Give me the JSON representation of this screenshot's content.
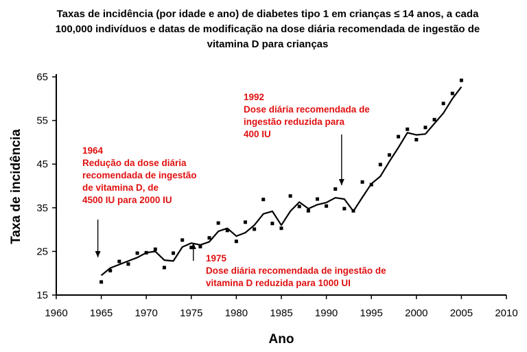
{
  "chart_data": {
    "type": "line",
    "title": "Taxas de incidência (por idade e ano) de diabetes tipo 1 em crianças ≤ 14 anos, a cada 100,000 indivíduos e datas de modificação na dose diária recomendada de ingestão de vitamina D para crianças",
    "xlabel": "Ano",
    "ylabel": "Taxa de incidência",
    "xlim": [
      1960,
      2010
    ],
    "ylim": [
      15,
      65
    ],
    "x_ticks": [
      1960,
      1965,
      1970,
      1975,
      1980,
      1985,
      1990,
      1995,
      2000,
      2005,
      2010
    ],
    "y_ticks": [
      15,
      25,
      35,
      45,
      55,
      65
    ],
    "grid": false,
    "series": [
      {
        "style": "points",
        "x": [
          1965,
          1966,
          1967,
          1968,
          1969,
          1970,
          1971,
          1972,
          1973,
          1974,
          1975,
          1976,
          1977,
          1978,
          1979,
          1980,
          1981,
          1982,
          1983,
          1984,
          1985,
          1986,
          1987,
          1988,
          1989,
          1990,
          1991,
          1992,
          1993,
          1994,
          1995,
          1996,
          1997,
          1998,
          1999,
          2000,
          2001,
          2002,
          2003,
          2004,
          2005
        ],
        "y": [
          18.0,
          20.6,
          22.7,
          22.1,
          24.6,
          24.7,
          25.5,
          21.3,
          24.6,
          27.6,
          25.9,
          26.1,
          28.1,
          31.5,
          29.8,
          27.3,
          31.7,
          30.1,
          36.9,
          31.4,
          30.3,
          37.7,
          35.3,
          34.3,
          37.0,
          35.4,
          39.3,
          34.8,
          34.3,
          40.9,
          40.3,
          44.9,
          47.1,
          51.3,
          53.0,
          50.6,
          53.4,
          55.2,
          58.9,
          61.2,
          64.2
        ]
      },
      {
        "style": "line",
        "x": [
          1965,
          1966,
          1967,
          1968,
          1969,
          1970,
          1971,
          1972,
          1973,
          1974,
          1975,
          1976,
          1977,
          1978,
          1979,
          1980,
          1981,
          1982,
          1983,
          1984,
          1985,
          1986,
          1987,
          1988,
          1989,
          1990,
          1991,
          1992,
          1993,
          1994,
          1995,
          1996,
          1997,
          1998,
          1999,
          2000,
          2001,
          2002,
          2003,
          2004,
          2005
        ],
        "y": [
          19.5,
          21.2,
          22.0,
          22.8,
          23.6,
          24.7,
          25.0,
          23.0,
          22.8,
          26.0,
          26.9,
          26.5,
          27.2,
          29.6,
          30.3,
          28.5,
          29.3,
          31.0,
          33.6,
          34.2,
          31.0,
          34.2,
          36.3,
          34.8,
          35.7,
          36.2,
          37.3,
          37.0,
          34.2,
          37.4,
          40.5,
          42.2,
          45.6,
          48.8,
          52.2,
          51.7,
          51.9,
          54.3,
          56.7,
          60.0,
          62.7
        ]
      }
    ],
    "annotations": [
      {
        "year": 1964,
        "arrow": "down",
        "lines": [
          "1964",
          "Redução da dose diária",
          "recomendada de ingestão",
          "de vitamina D, de",
          "4500 IU para 2000 IU"
        ]
      },
      {
        "year": 1975,
        "arrow": "up",
        "lines": [
          "1975",
          "Dose diária recomendada de ingestão de",
          "vitamina D reduzida para 1000 UI"
        ]
      },
      {
        "year": 1992,
        "arrow": "down",
        "lines": [
          "1992",
          "Dose diária recomendada de",
          "ingestão reduzida para",
          "400 IU"
        ]
      }
    ],
    "colors": {
      "annotation": "#e01010",
      "data": "#000000"
    }
  }
}
